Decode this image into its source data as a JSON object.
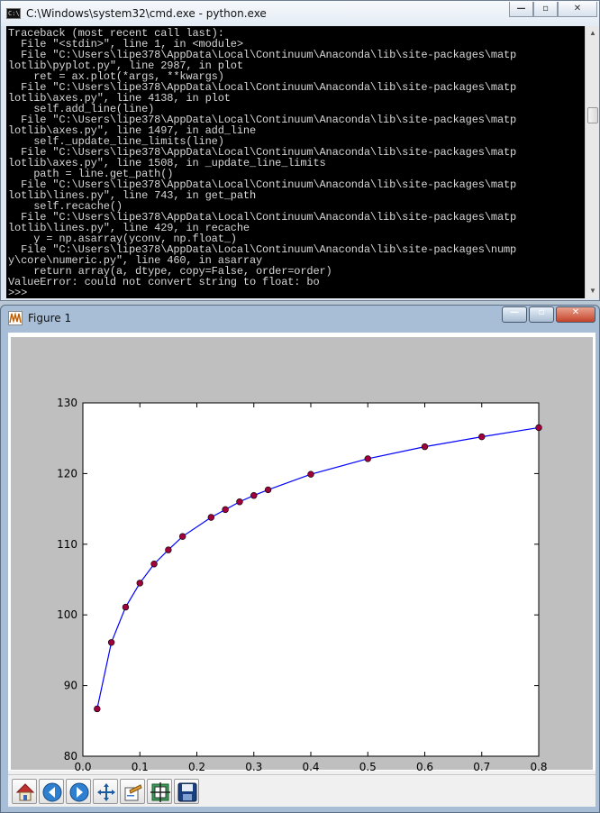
{
  "cmd": {
    "title": "C:\\Windows\\system32\\cmd.exe - python.exe",
    "icon_text": "C:\\",
    "lines": [
      "Traceback (most recent call last):",
      "  File \"<stdin>\", line 1, in <module>",
      "  File \"C:\\Users\\lipe378\\AppData\\Local\\Continuum\\Anaconda\\lib\\site-packages\\matp",
      "lotlib\\pyplot.py\", line 2987, in plot",
      "    ret = ax.plot(*args, **kwargs)",
      "  File \"C:\\Users\\lipe378\\AppData\\Local\\Continuum\\Anaconda\\lib\\site-packages\\matp",
      "lotlib\\axes.py\", line 4138, in plot",
      "    self.add_line(line)",
      "  File \"C:\\Users\\lipe378\\AppData\\Local\\Continuum\\Anaconda\\lib\\site-packages\\matp",
      "lotlib\\axes.py\", line 1497, in add_line",
      "    self._update_line_limits(line)",
      "  File \"C:\\Users\\lipe378\\AppData\\Local\\Continuum\\Anaconda\\lib\\site-packages\\matp",
      "lotlib\\axes.py\", line 1508, in _update_line_limits",
      "    path = line.get_path()",
      "  File \"C:\\Users\\lipe378\\AppData\\Local\\Continuum\\Anaconda\\lib\\site-packages\\matp",
      "lotlib\\lines.py\", line 743, in get_path",
      "    self.recache()",
      "  File \"C:\\Users\\lipe378\\AppData\\Local\\Continuum\\Anaconda\\lib\\site-packages\\matp",
      "lotlib\\lines.py\", line 429, in recache",
      "    y = np.asarray(yconv, np.float_)",
      "  File \"C:\\Users\\lipe378\\AppData\\Local\\Continuum\\Anaconda\\lib\\site-packages\\nump",
      "y\\core\\numeric.py\", line 460, in asarray",
      "    return array(a, dtype, copy=False, order=order)",
      "ValueError: could not convert string to float: bo",
      ">>>"
    ],
    "text_color": "#d7d7d7",
    "background": "#000000"
  },
  "window_buttons": {
    "minimize": "—",
    "maximize": "▫",
    "close": "✕"
  },
  "figure": {
    "title": "Figure 1",
    "background": "#bfbfbf",
    "toolbar": [
      {
        "id": "home",
        "icon": "home-icon"
      },
      {
        "id": "back",
        "icon": "back-arrow-icon"
      },
      {
        "id": "forward",
        "icon": "forward-arrow-icon"
      },
      {
        "id": "pan",
        "icon": "pan-move-icon"
      },
      {
        "id": "zoom",
        "icon": "zoom-rect-icon"
      },
      {
        "id": "subplots",
        "icon": "subplots-icon"
      },
      {
        "id": "save",
        "icon": "save-floppy-icon"
      }
    ]
  },
  "chart_data": {
    "type": "line",
    "x": [
      0.025,
      0.05,
      0.075,
      0.1,
      0.125,
      0.15,
      0.175,
      0.225,
      0.25,
      0.275,
      0.3,
      0.325,
      0.4,
      0.5,
      0.6,
      0.7,
      0.8
    ],
    "series": [
      {
        "values": [
          86.7,
          96.1,
          101.1,
          104.5,
          107.2,
          109.2,
          111.1,
          113.8,
          114.9,
          116.0,
          116.9,
          117.7,
          119.9,
          122.1,
          123.8,
          125.2,
          126.5
        ],
        "line_color": "#0000ff",
        "marker_color": "#a0003c",
        "marker": "circle"
      }
    ],
    "xlim": [
      0.0,
      0.8
    ],
    "ylim": [
      80,
      130
    ],
    "xticks": [
      "0.0",
      "0.1",
      "0.2",
      "0.3",
      "0.4",
      "0.5",
      "0.6",
      "0.7",
      "0.8"
    ],
    "yticks": [
      "80",
      "90",
      "100",
      "110",
      "120",
      "130"
    ],
    "grid": false,
    "title": "",
    "xlabel": "",
    "ylabel": ""
  }
}
